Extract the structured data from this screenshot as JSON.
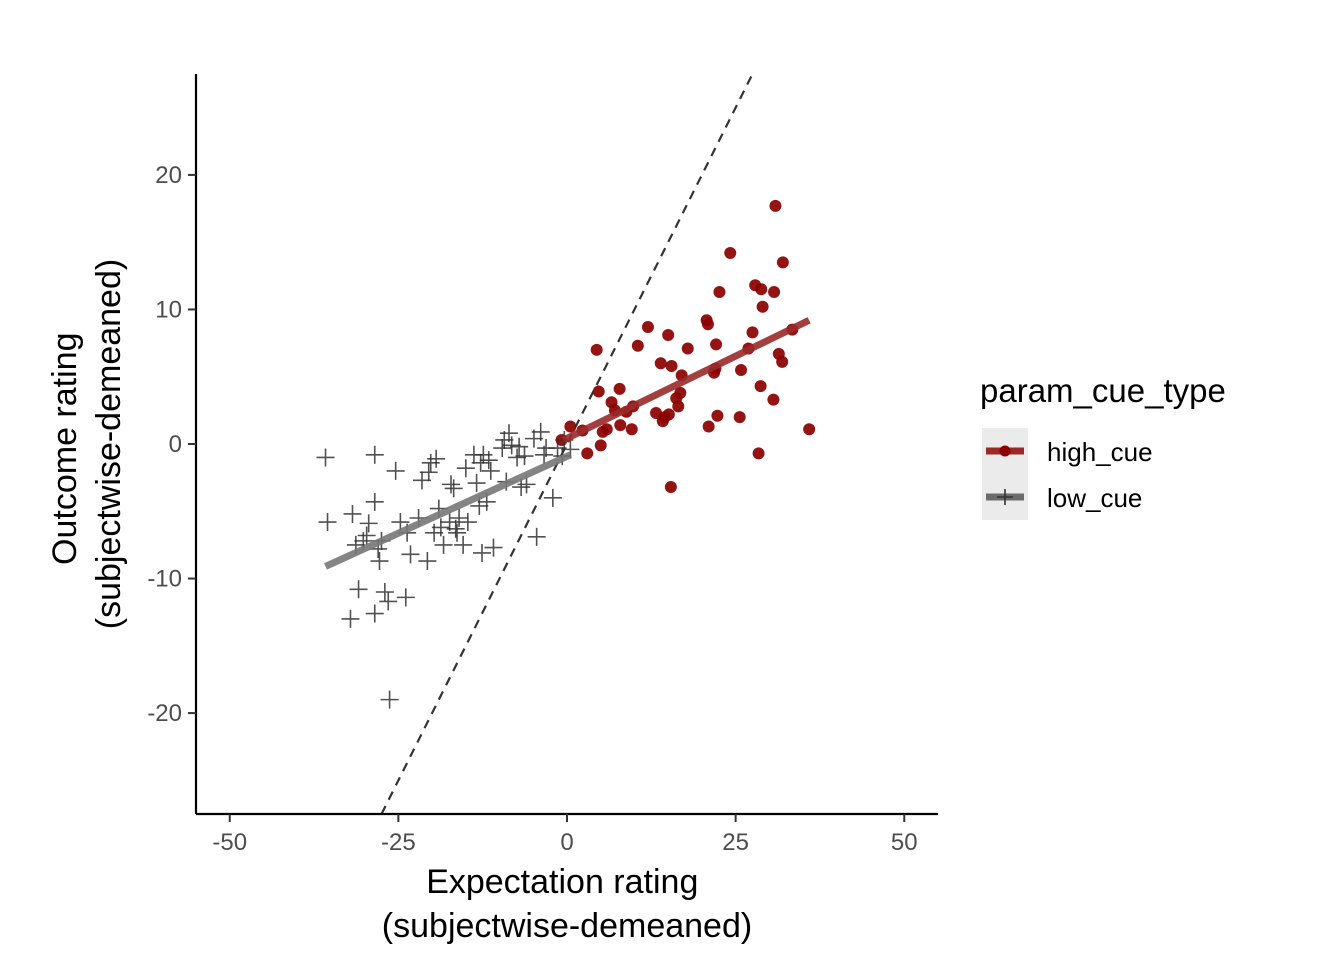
{
  "chart_data": {
    "type": "scatter",
    "xlabel": [
      "Expectation rating",
      "(subjectwise-demeaned)"
    ],
    "ylabel": [
      "Outcome rating",
      "(subjectwise-demeaned)"
    ],
    "xlim": [
      -55,
      55
    ],
    "ylim": [
      -27.5,
      27.5
    ],
    "x_ticks": [
      -50,
      -25,
      0,
      25,
      50
    ],
    "x_tick_labels": [
      "-50",
      "-25",
      "0",
      "25",
      "50"
    ],
    "y_ticks": [
      -20,
      -10,
      0,
      10,
      20
    ],
    "y_tick_labels": [
      "-20",
      "-10",
      "0",
      "10",
      "20"
    ],
    "grid": false,
    "legend": {
      "title": "param_cue_type",
      "position": "right",
      "entries": [
        "high_cue",
        "low_cue"
      ]
    },
    "identity_line": {
      "style": "dashed",
      "color": "#333333",
      "slope": 1,
      "intercept": 0
    },
    "series": [
      {
        "name": "high_cue",
        "marker": "circle",
        "color": "#8B0000",
        "fit_color": "#9a2a2a",
        "fit": {
          "x": [
            -0.5,
            35.9
          ],
          "y": [
            0.3,
            9.2
          ]
        },
        "points": [
          [
            -0.8,
            0.3
          ],
          [
            0.5,
            1.3
          ],
          [
            2.3,
            1.0
          ],
          [
            3.0,
            -0.7
          ],
          [
            4.4,
            7.0
          ],
          [
            4.7,
            3.9
          ],
          [
            5.0,
            -0.1
          ],
          [
            5.3,
            0.9
          ],
          [
            5.9,
            1.1
          ],
          [
            6.6,
            3.1
          ],
          [
            7.1,
            2.5
          ],
          [
            7.8,
            4.1
          ],
          [
            7.9,
            1.4
          ],
          [
            8.8,
            2.4
          ],
          [
            9.6,
            1.1
          ],
          [
            9.8,
            2.8
          ],
          [
            10.5,
            7.3
          ],
          [
            12.0,
            8.7
          ],
          [
            13.2,
            2.3
          ],
          [
            13.9,
            6.0
          ],
          [
            14.2,
            1.7
          ],
          [
            14.5,
            2.0
          ],
          [
            15.0,
            8.1
          ],
          [
            15.1,
            2.2
          ],
          [
            15.4,
            -3.2
          ],
          [
            15.5,
            5.8
          ],
          [
            16.2,
            3.4
          ],
          [
            16.5,
            2.8
          ],
          [
            16.8,
            3.8
          ],
          [
            17.0,
            5.1
          ],
          [
            17.9,
            7.1
          ],
          [
            20.7,
            9.2
          ],
          [
            20.9,
            8.9
          ],
          [
            21.0,
            1.3
          ],
          [
            21.8,
            5.3
          ],
          [
            22.0,
            5.6
          ],
          [
            22.1,
            7.4
          ],
          [
            22.3,
            2.1
          ],
          [
            22.6,
            11.3
          ],
          [
            24.2,
            14.2
          ],
          [
            25.6,
            2.0
          ],
          [
            25.8,
            5.5
          ],
          [
            26.9,
            7.1
          ],
          [
            27.5,
            8.3
          ],
          [
            27.9,
            11.8
          ],
          [
            28.4,
            -0.7
          ],
          [
            28.7,
            4.3
          ],
          [
            28.8,
            11.5
          ],
          [
            29.0,
            10.2
          ],
          [
            30.6,
            3.3
          ],
          [
            30.7,
            11.3
          ],
          [
            30.9,
            17.7
          ],
          [
            31.4,
            6.7
          ],
          [
            31.9,
            6.1
          ],
          [
            32.0,
            13.5
          ],
          [
            33.4,
            8.5
          ],
          [
            35.9,
            1.1
          ]
        ]
      },
      {
        "name": "low_cue",
        "marker": "plus",
        "color": "#333333",
        "fit_color": "#777777",
        "fit": {
          "x": [
            -35.8,
            0.5
          ],
          "y": [
            -9.1,
            -0.8
          ]
        },
        "points": [
          [
            -35.8,
            -1.0
          ],
          [
            -35.5,
            -5.8
          ],
          [
            -32.1,
            -13.0
          ],
          [
            -31.8,
            -5.2
          ],
          [
            -31.3,
            -7.5
          ],
          [
            -30.9,
            -10.8
          ],
          [
            -30.2,
            -7.2
          ],
          [
            -29.7,
            -6.8
          ],
          [
            -29.4,
            -5.9
          ],
          [
            -28.5,
            -4.3
          ],
          [
            -28.5,
            -12.6
          ],
          [
            -28.5,
            -0.8
          ],
          [
            -28.0,
            -7.8
          ],
          [
            -27.8,
            -8.7
          ],
          [
            -27.5,
            -7.2
          ],
          [
            -27.0,
            -11.0
          ],
          [
            -26.5,
            -11.7
          ],
          [
            -26.3,
            -19.0
          ],
          [
            -25.4,
            -2.0
          ],
          [
            -24.7,
            -5.8
          ],
          [
            -23.9,
            -11.4
          ],
          [
            -23.7,
            -6.6
          ],
          [
            -23.2,
            -8.2
          ],
          [
            -22.0,
            -5.5
          ],
          [
            -21.5,
            -2.7
          ],
          [
            -20.7,
            -8.7
          ],
          [
            -20.5,
            -2.1
          ],
          [
            -20.2,
            -1.4
          ],
          [
            -19.7,
            -6.6
          ],
          [
            -19.4,
            -1.1
          ],
          [
            -19.0,
            -4.8
          ],
          [
            -18.7,
            -6.2
          ],
          [
            -18.3,
            -7.5
          ],
          [
            -17.4,
            -5.8
          ],
          [
            -17.2,
            -3.0
          ],
          [
            -16.8,
            -3.3
          ],
          [
            -16.5,
            -6.3
          ],
          [
            -16.3,
            -6.6
          ],
          [
            -16.0,
            -5.5
          ],
          [
            -15.4,
            -7.5
          ],
          [
            -15.0,
            -1.8
          ],
          [
            -14.7,
            -5.8
          ],
          [
            -13.8,
            -0.8
          ],
          [
            -13.4,
            -2.9
          ],
          [
            -13.0,
            -4.6
          ],
          [
            -12.8,
            -1.4
          ],
          [
            -12.6,
            -8.1
          ],
          [
            -12.4,
            -0.8
          ],
          [
            -11.9,
            -4.3
          ],
          [
            -11.6,
            -1.2
          ],
          [
            -11.3,
            -2.0
          ],
          [
            -10.9,
            -7.7
          ],
          [
            -9.6,
            -0.3
          ],
          [
            -9.3,
            0.3
          ],
          [
            -9.0,
            -2.8
          ],
          [
            -8.6,
            0.8
          ],
          [
            -8.2,
            -0.1
          ],
          [
            -7.4,
            -1.0
          ],
          [
            -7.1,
            -0.2
          ],
          [
            -6.8,
            -3.2
          ],
          [
            -6.3,
            -0.9
          ],
          [
            -6.0,
            -3.0
          ],
          [
            -4.9,
            0.4
          ],
          [
            -4.5,
            -6.9
          ],
          [
            -3.9,
            0.9
          ],
          [
            -3.4,
            -0.8
          ],
          [
            -3.1,
            -0.3
          ],
          [
            -2.1,
            -4.0
          ],
          [
            -1.4,
            -0.3
          ],
          [
            -0.7,
            -0.9
          ],
          [
            -0.4,
            0.3
          ],
          [
            0.5,
            -0.4
          ]
        ]
      }
    ]
  }
}
